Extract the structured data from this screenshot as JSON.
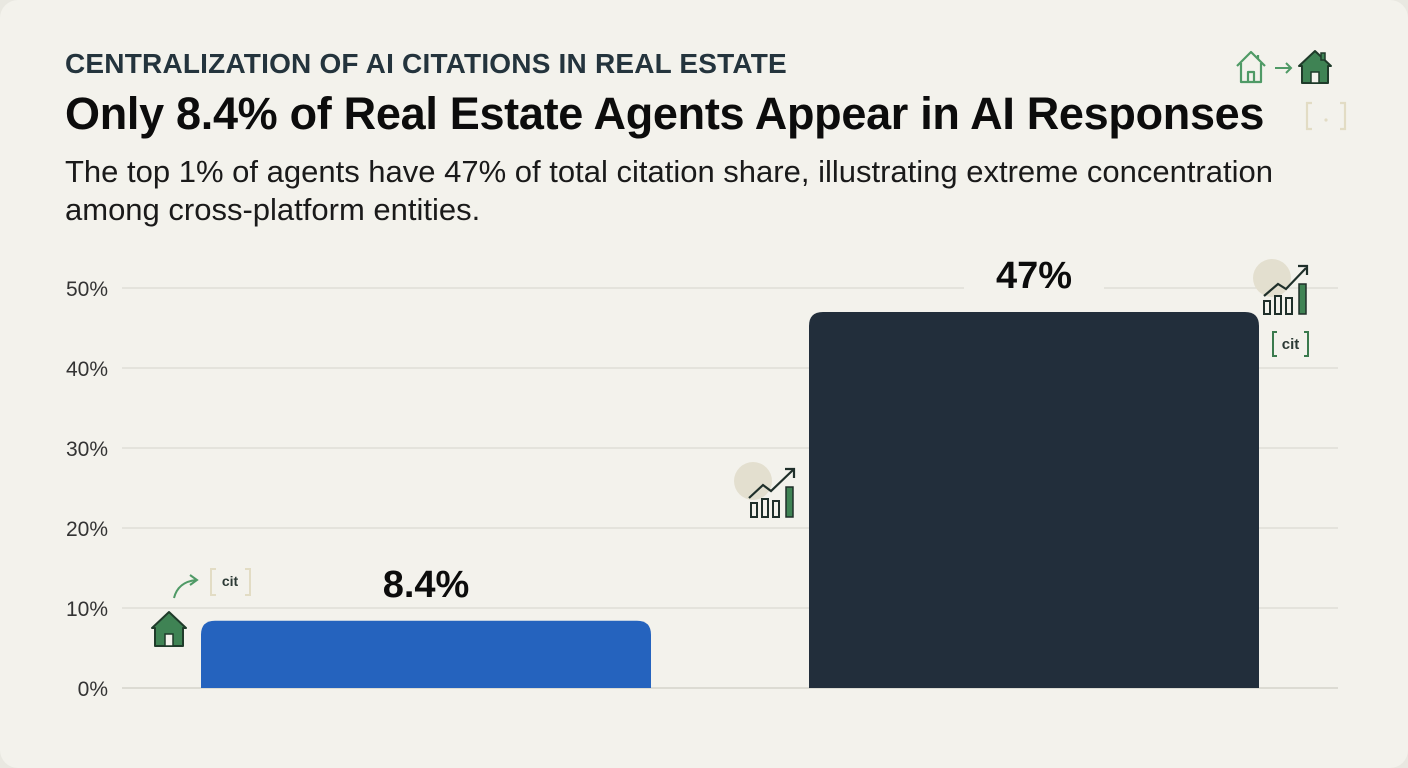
{
  "header": {
    "kicker": "CENTRALIZATION OF AI CITATIONS IN REAL ESTATE",
    "title": "Only 8.4% of Real Estate Agents Appear in AI Responses",
    "subtitle": "The top 1% of agents have 47% of total citation share, illustrating extreme concentration among cross-platform entities."
  },
  "decorations": {
    "cit_label": "cit",
    "icons": [
      "house-outline-icon",
      "arrow-right-icon",
      "house-filled-icon",
      "bracket-icon",
      "growth-chart-icon",
      "curved-arrow-icon"
    ]
  },
  "colors": {
    "bar_1": "#2563be",
    "bar_2": "#222e3b",
    "accent_green": "#3a7a4d",
    "background": "#f3f2ec"
  },
  "chart_data": {
    "type": "bar",
    "categories": [
      "",
      ""
    ],
    "values": [
      8.4,
      47
    ],
    "value_labels": [
      "8.4%",
      "47%"
    ],
    "ylim": [
      0,
      50
    ],
    "yticks": [
      0,
      10,
      20,
      30,
      40,
      50
    ],
    "ytick_labels": [
      "0%",
      "10%",
      "20%",
      "30%",
      "40%",
      "50%"
    ],
    "grid": true,
    "xlabel": "",
    "ylabel": ""
  }
}
